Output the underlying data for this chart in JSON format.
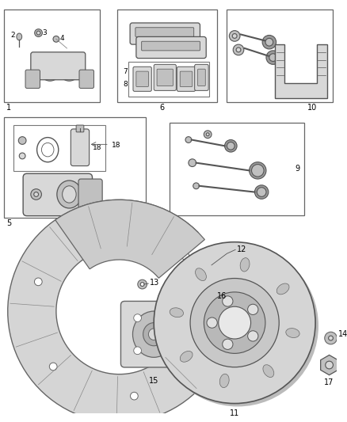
{
  "bg_color": "#ffffff",
  "lc": "#555555",
  "tc": "#000000",
  "fc_light": "#d8d8d8",
  "fc_mid": "#c0c0c0",
  "fc_dark": "#999999"
}
